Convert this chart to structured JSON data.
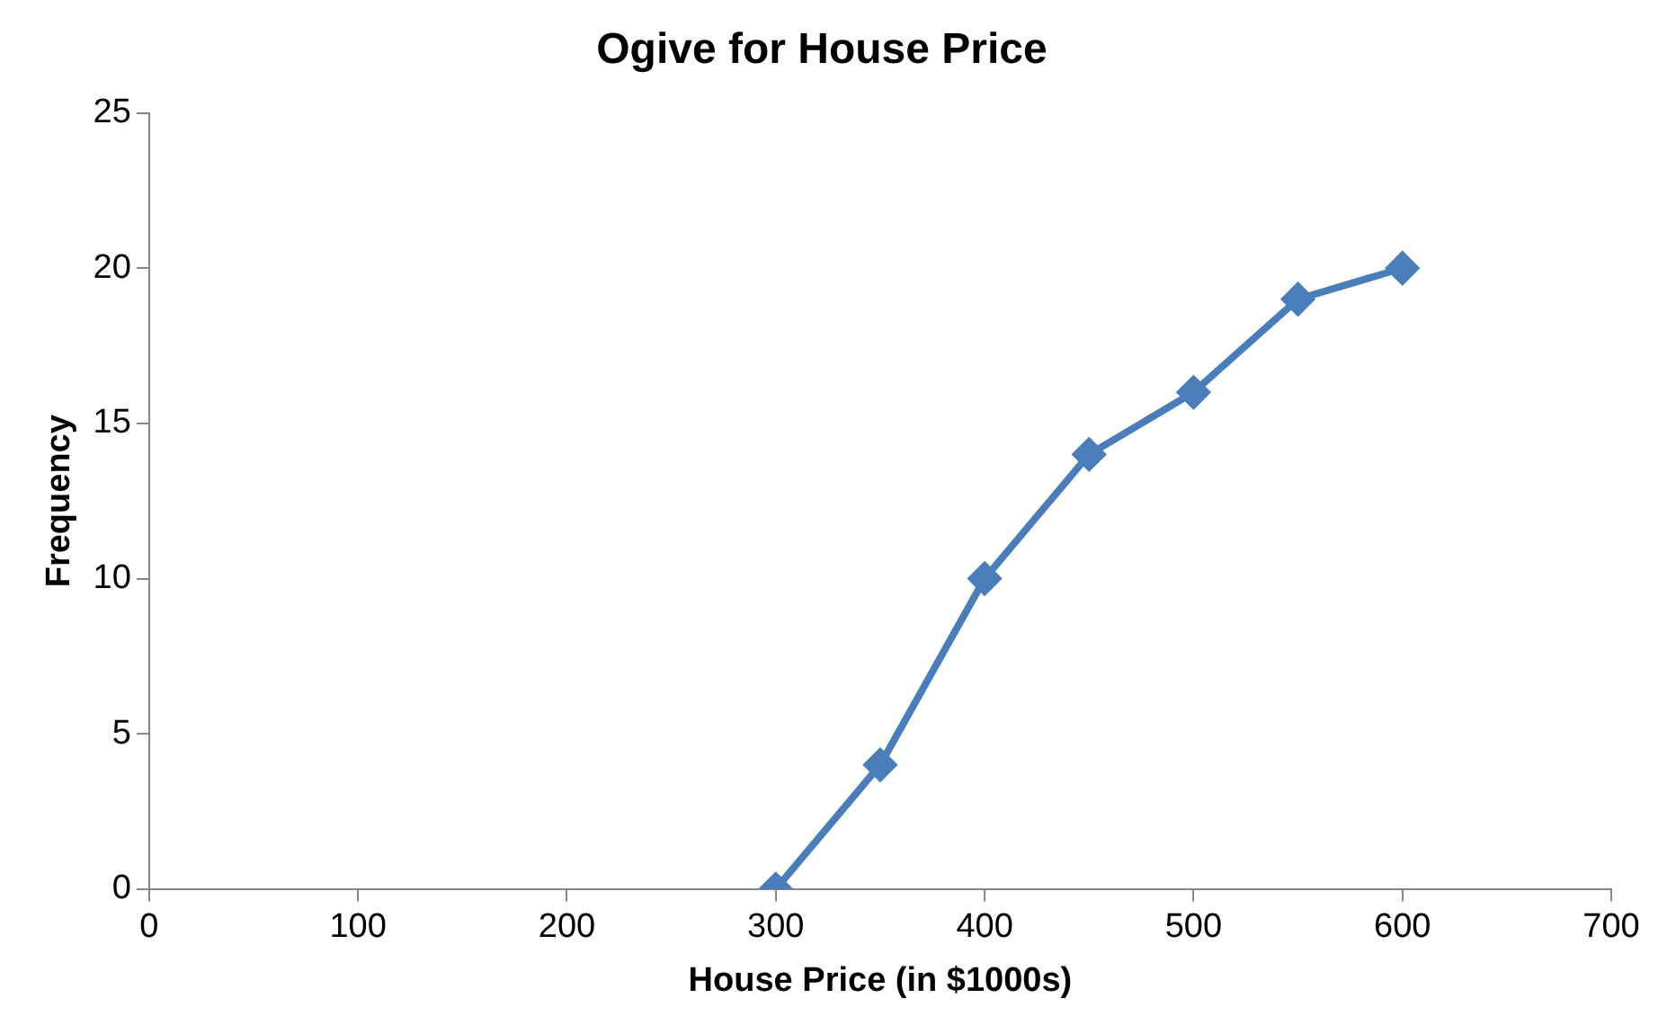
{
  "chart_data": {
    "type": "line",
    "title": "Ogive for House Price",
    "xlabel": "House Price (in $1000s)",
    "ylabel": "Frequency",
    "x": [
      300,
      350,
      400,
      450,
      500,
      550,
      600
    ],
    "series": [
      {
        "color": "#4a7ebb",
        "values": [
          0,
          4,
          10,
          14,
          16,
          19,
          20
        ]
      }
    ],
    "xlim": [
      0,
      700
    ],
    "xticks": [
      0,
      100,
      200,
      300,
      400,
      500,
      600,
      700
    ],
    "ylim": [
      0,
      25
    ],
    "yticks": [
      0,
      5,
      10,
      15,
      20,
      25
    ],
    "grid": false,
    "legend": false,
    "marker": "diamond",
    "line_style": "solid"
  }
}
